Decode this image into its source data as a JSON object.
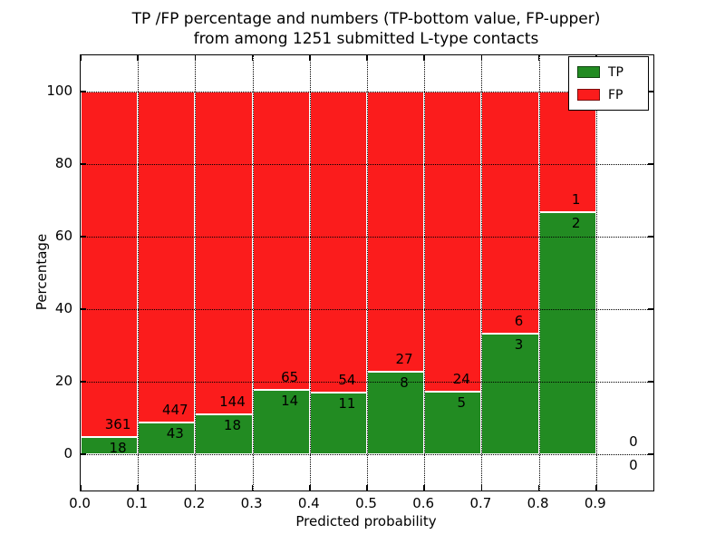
{
  "chart_data": {
    "type": "bar",
    "stacked": true,
    "title_line1": "TP /FP percentage and numbers (TP-bottom value, FP-upper)",
    "title_line2": "from among 1251 submitted L-type contacts",
    "xlabel": "Predicted probability",
    "ylabel": "Percentage",
    "xlim": [
      0.0,
      1.0
    ],
    "ylim": [
      -10,
      110
    ],
    "bin_width": 0.1,
    "bin_starts": [
      0.0,
      0.1,
      0.2,
      0.3,
      0.4,
      0.5,
      0.6,
      0.7,
      0.8,
      0.9
    ],
    "series": [
      {
        "name": "TP",
        "color": "#228b22",
        "values": [
          18,
          43,
          18,
          14,
          11,
          8,
          5,
          3,
          2,
          0
        ]
      },
      {
        "name": "FP",
        "color": "#fb1c1c",
        "values": [
          361,
          447,
          144,
          65,
          54,
          27,
          24,
          6,
          1,
          0
        ]
      }
    ],
    "tp_percent": [
      4.75,
      8.78,
      11.11,
      17.72,
      16.92,
      22.86,
      17.24,
      33.33,
      66.67,
      null
    ],
    "x_ticks": [
      {
        "v": 0.0,
        "label": "0.0"
      },
      {
        "v": 0.1,
        "label": "0.1"
      },
      {
        "v": 0.2,
        "label": "0.2"
      },
      {
        "v": 0.3,
        "label": "0.3"
      },
      {
        "v": 0.4,
        "label": "0.4"
      },
      {
        "v": 0.5,
        "label": "0.5"
      },
      {
        "v": 0.6,
        "label": "0.6"
      },
      {
        "v": 0.7,
        "label": "0.7"
      },
      {
        "v": 0.8,
        "label": "0.8"
      },
      {
        "v": 0.9,
        "label": "0.9"
      }
    ],
    "y_ticks": [
      {
        "v": 0,
        "label": "0"
      },
      {
        "v": 20,
        "label": "20"
      },
      {
        "v": 40,
        "label": "40"
      },
      {
        "v": 60,
        "label": "60"
      },
      {
        "v": 80,
        "label": "80"
      },
      {
        "v": 100,
        "label": "100"
      }
    ],
    "grid": {
      "style": "dotted",
      "color": "#000000"
    },
    "legend_position": "upper right",
    "colors": {
      "background": "#ffffff",
      "text": "#000000",
      "bar_edge": "#ffffff"
    }
  }
}
